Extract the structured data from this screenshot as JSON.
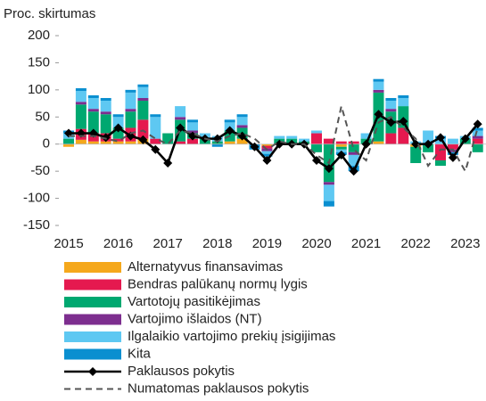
{
  "chart_data": {
    "type": "bar",
    "y_label": "Proc. skirtumas",
    "categories": [
      "2015",
      null,
      null,
      null,
      "2016",
      null,
      null,
      null,
      "2017",
      null,
      null,
      null,
      "2018",
      null,
      null,
      null,
      "2019",
      null,
      null,
      null,
      "2020",
      null,
      null,
      null,
      "2021",
      null,
      null,
      null,
      "2022",
      null,
      null,
      null,
      "2023",
      null
    ],
    "ylim": [
      -150,
      200
    ],
    "yticks": [
      -150,
      -100,
      -50,
      0,
      50,
      100,
      150,
      200
    ],
    "stacked": true,
    "series": [
      {
        "name": "Alternatyvus finansavimas",
        "color": "#f5a81c",
        "values": [
          -5,
          8,
          5,
          5,
          5,
          5,
          10,
          0,
          0,
          0,
          0,
          0,
          0,
          5,
          10,
          0,
          -3,
          0,
          0,
          0,
          0,
          0,
          -5,
          0,
          0,
          5,
          0,
          0,
          -5,
          0,
          0,
          0,
          0,
          0
        ]
      },
      {
        "name": "Bendras palūkanų normų lygis",
        "color": "#e5194f",
        "values": [
          0,
          20,
          15,
          15,
          5,
          25,
          35,
          10,
          0,
          5,
          10,
          0,
          0,
          0,
          0,
          0,
          -5,
          0,
          0,
          0,
          20,
          10,
          5,
          5,
          0,
          0,
          20,
          30,
          0,
          0,
          -30,
          -10,
          0,
          10
        ]
      },
      {
        "name": "Vartotojų pasitikėjimas",
        "color": "#00a870",
        "values": [
          10,
          45,
          40,
          35,
          20,
          30,
          35,
          0,
          20,
          40,
          10,
          10,
          5,
          20,
          20,
          0,
          0,
          10,
          10,
          5,
          -15,
          -70,
          -5,
          -15,
          10,
          90,
          40,
          40,
          -30,
          -15,
          -10,
          0,
          10,
          -15
        ]
      },
      {
        "name": "Vartojimo išlaidos (NT)",
        "color": "#7d2e8f",
        "values": [
          0,
          5,
          5,
          5,
          0,
          5,
          5,
          0,
          0,
          5,
          5,
          0,
          0,
          0,
          5,
          0,
          -5,
          0,
          0,
          0,
          0,
          -5,
          0,
          -5,
          0,
          5,
          5,
          0,
          0,
          0,
          0,
          -5,
          0,
          5
        ]
      },
      {
        "name": "Ilgalaikio vartojimo prekių įsigijimas",
        "color": "#5ec8f2",
        "values": [
          10,
          20,
          20,
          20,
          20,
          30,
          20,
          40,
          0,
          20,
          15,
          10,
          10,
          15,
          15,
          0,
          -5,
          5,
          5,
          5,
          5,
          -30,
          -5,
          -20,
          10,
          15,
          15,
          15,
          5,
          25,
          10,
          10,
          5,
          10
        ]
      },
      {
        "name": "Kita",
        "color": "#0a8fd0",
        "values": [
          5,
          5,
          5,
          5,
          5,
          5,
          5,
          5,
          0,
          0,
          5,
          0,
          -5,
          5,
          5,
          -10,
          -5,
          0,
          0,
          0,
          0,
          -10,
          -5,
          -10,
          0,
          5,
          5,
          5,
          0,
          0,
          5,
          -5,
          0,
          5
        ]
      }
    ],
    "lines": [
      {
        "name": "Paklausos pokytis",
        "color": "#000000",
        "style": "solid",
        "markers": true,
        "values": [
          20,
          20,
          20,
          12,
          30,
          15,
          8,
          -10,
          -35,
          30,
          15,
          10,
          10,
          25,
          15,
          -5,
          -30,
          0,
          0,
          0,
          -30,
          -45,
          -20,
          -50,
          0,
          55,
          40,
          42,
          0,
          0,
          12,
          -25,
          10,
          37
        ]
      },
      {
        "name": "Numatomas paklausos pokytis",
        "color": "#555555",
        "style": "dashed",
        "markers": false,
        "values": [
          15,
          15,
          15,
          10,
          5,
          20,
          25,
          10,
          0,
          25,
          20,
          10,
          5,
          15,
          20,
          10,
          -10,
          5,
          0,
          0,
          -20,
          -35,
          70,
          -10,
          -30,
          40,
          50,
          30,
          10,
          -40,
          -10,
          -10,
          -50,
          30
        ]
      }
    ]
  }
}
